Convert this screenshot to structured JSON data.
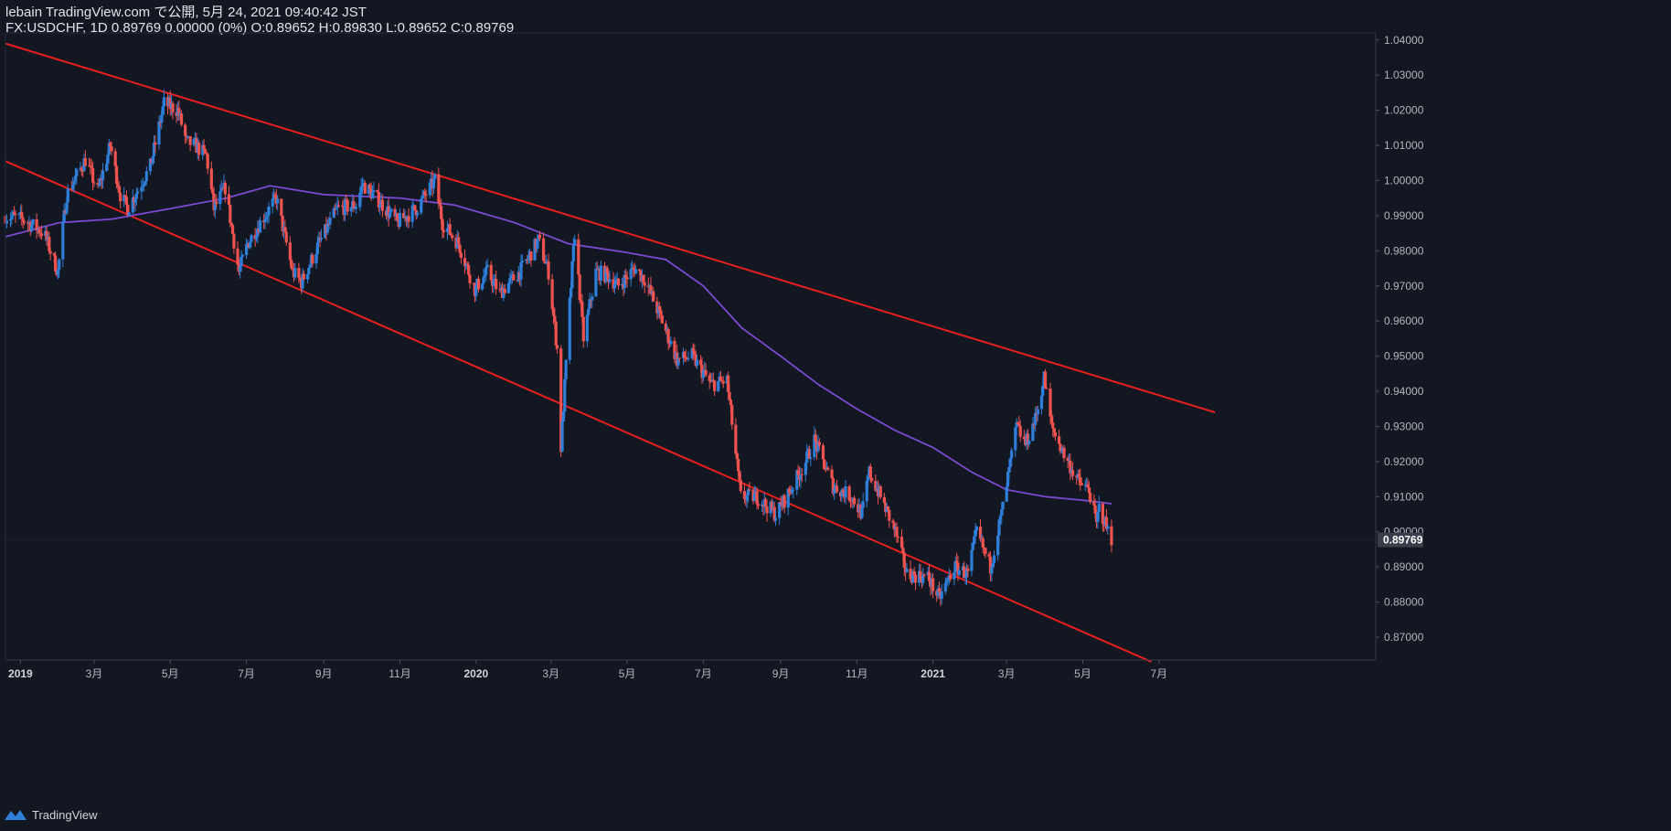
{
  "header": {
    "line1": "lebain TradingView.com で公開, 5月 24, 2021 09:40:42 JST",
    "line2": "FX:USDCHF, 1D 0.89769 0.00000 (0%) O:0.89652 H:0.89830 L:0.89652 C:0.89769"
  },
  "footer": {
    "brand": "TradingView",
    "logo_icon": "tradingview-logo-icon"
  },
  "colors": {
    "background": "#131722",
    "up": "#2e7fd9",
    "down": "#ef5350",
    "trendline": "#e81f1f",
    "ma": "#7b4ad1",
    "axis_text": "#b2b5be",
    "last_price_label_bg": "#3a3e4a"
  },
  "chart_data": {
    "type": "candlestick",
    "symbol": "FX:USDCHF",
    "interval": "1D",
    "last_price": 0.89769,
    "last_price_label": "0.89769",
    "ylim": [
      0.8635,
      1.0415
    ],
    "price_ticks": [
      "0.87000",
      "0.88000",
      "0.89000",
      "0.90000",
      "0.91000",
      "0.92000",
      "0.93000",
      "0.94000",
      "0.95000",
      "0.96000",
      "0.97000",
      "0.98000",
      "0.99000",
      "1.00000",
      "1.01000",
      "1.02000",
      "1.03000",
      "1.04000"
    ],
    "time_ticks": [
      {
        "label": "2019",
        "date": "2019-01-01",
        "major": true
      },
      {
        "label": "3月",
        "date": "2019-03-01",
        "major": false
      },
      {
        "label": "5月",
        "date": "2019-05-01",
        "major": false
      },
      {
        "label": "7月",
        "date": "2019-07-01",
        "major": false
      },
      {
        "label": "9月",
        "date": "2019-09-01",
        "major": false
      },
      {
        "label": "11月",
        "date": "2019-11-01",
        "major": false
      },
      {
        "label": "2020",
        "date": "2020-01-01",
        "major": true
      },
      {
        "label": "3月",
        "date": "2020-03-01",
        "major": false
      },
      {
        "label": "5月",
        "date": "2020-05-01",
        "major": false
      },
      {
        "label": "7月",
        "date": "2020-07-01",
        "major": false
      },
      {
        "label": "9月",
        "date": "2020-09-01",
        "major": false
      },
      {
        "label": "11月",
        "date": "2020-11-01",
        "major": false
      },
      {
        "label": "2021",
        "date": "2021-01-01",
        "major": true
      },
      {
        "label": "3月",
        "date": "2021-03-01",
        "major": false
      },
      {
        "label": "5月",
        "date": "2021-05-01",
        "major": false
      },
      {
        "label": "7月",
        "date": "2021-07-01",
        "major": false
      }
    ],
    "price_path": [
      [
        "2018-12-20",
        0.99
      ],
      [
        "2019-01-03",
        0.989
      ],
      [
        "2019-01-20",
        0.985
      ],
      [
        "2019-01-31",
        0.974
      ],
      [
        "2019-02-07",
        0.996
      ],
      [
        "2019-02-22",
        1.006
      ],
      [
        "2019-03-04",
        0.997
      ],
      [
        "2019-03-14",
        1.01
      ],
      [
        "2019-03-22",
        0.996
      ],
      [
        "2019-03-28",
        0.992
      ],
      [
        "2019-04-15",
        1.004
      ],
      [
        "2019-04-26",
        1.022
      ],
      [
        "2019-05-07",
        1.02
      ],
      [
        "2019-05-14",
        1.011
      ],
      [
        "2019-05-21",
        1.01
      ],
      [
        "2019-05-30",
        1.007
      ],
      [
        "2019-06-05",
        0.992
      ],
      [
        "2019-06-14",
        0.998
      ],
      [
        "2019-06-25",
        0.974
      ],
      [
        "2019-07-02",
        0.982
      ],
      [
        "2019-07-12",
        0.988
      ],
      [
        "2019-07-25",
        0.995
      ],
      [
        "2019-08-07",
        0.974
      ],
      [
        "2019-08-14",
        0.971
      ],
      [
        "2019-08-28",
        0.982
      ],
      [
        "2019-09-12",
        0.992
      ],
      [
        "2019-09-27",
        0.993
      ],
      [
        "2019-10-02",
        0.999
      ],
      [
        "2019-10-16",
        0.994
      ],
      [
        "2019-10-30",
        0.988
      ],
      [
        "2019-11-14",
        0.992
      ],
      [
        "2019-11-29",
        1.0
      ],
      [
        "2019-12-05",
        0.988
      ],
      [
        "2019-12-18",
        0.982
      ],
      [
        "2019-12-31",
        0.969
      ],
      [
        "2020-01-10",
        0.974
      ],
      [
        "2020-01-20",
        0.968
      ],
      [
        "2020-02-05",
        0.974
      ],
      [
        "2020-02-20",
        0.983
      ],
      [
        "2020-02-28",
        0.974
      ],
      [
        "2020-03-06",
        0.952
      ],
      [
        "2020-03-09",
        0.924
      ],
      [
        "2020-03-16",
        0.965
      ],
      [
        "2020-03-20",
        0.985
      ],
      [
        "2020-03-27",
        0.955
      ],
      [
        "2020-04-06",
        0.974
      ],
      [
        "2020-04-15",
        0.973
      ],
      [
        "2020-04-24",
        0.97
      ],
      [
        "2020-05-07",
        0.975
      ],
      [
        "2020-05-15",
        0.972
      ],
      [
        "2020-05-29",
        0.96
      ],
      [
        "2020-06-10",
        0.949
      ],
      [
        "2020-06-22",
        0.95
      ],
      [
        "2020-07-07",
        0.942
      ],
      [
        "2020-07-20",
        0.943
      ],
      [
        "2020-07-31",
        0.91
      ],
      [
        "2020-08-13",
        0.91
      ],
      [
        "2020-08-28",
        0.905
      ],
      [
        "2020-09-09",
        0.912
      ],
      [
        "2020-09-21",
        0.92
      ],
      [
        "2020-09-28",
        0.926
      ],
      [
        "2020-10-13",
        0.913
      ],
      [
        "2020-10-28",
        0.91
      ],
      [
        "2020-11-05",
        0.905
      ],
      [
        "2020-11-11",
        0.917
      ],
      [
        "2020-11-20",
        0.91
      ],
      [
        "2020-12-02",
        0.9
      ],
      [
        "2020-12-11",
        0.888
      ],
      [
        "2020-12-28",
        0.887
      ],
      [
        "2021-01-06",
        0.881
      ],
      [
        "2021-01-18",
        0.89
      ],
      [
        "2021-01-29",
        0.888
      ],
      [
        "2021-02-05",
        0.9
      ],
      [
        "2021-02-16",
        0.89
      ],
      [
        "2021-02-26",
        0.907
      ],
      [
        "2021-03-09",
        0.93
      ],
      [
        "2021-03-16",
        0.925
      ],
      [
        "2021-03-24",
        0.932
      ],
      [
        "2021-03-31",
        0.944
      ],
      [
        "2021-04-06",
        0.93
      ],
      [
        "2021-04-16",
        0.922
      ],
      [
        "2021-04-28",
        0.914
      ],
      [
        "2021-05-06",
        0.912
      ],
      [
        "2021-05-12",
        0.902
      ],
      [
        "2021-05-14",
        0.907
      ],
      [
        "2021-05-24",
        0.8977
      ]
    ],
    "moving_average": [
      [
        "2018-12-20",
        0.984
      ],
      [
        "2019-02-01",
        0.988
      ],
      [
        "2019-03-15",
        0.989
      ],
      [
        "2019-05-01",
        0.992
      ],
      [
        "2019-06-15",
        0.995
      ],
      [
        "2019-07-20",
        0.9985
      ],
      [
        "2019-09-01",
        0.996
      ],
      [
        "2019-11-01",
        0.995
      ],
      [
        "2019-12-15",
        0.993
      ],
      [
        "2020-02-01",
        0.988
      ],
      [
        "2020-03-15",
        0.982
      ],
      [
        "2020-05-01",
        0.9795
      ],
      [
        "2020-06-01",
        0.9775
      ],
      [
        "2020-07-01",
        0.97
      ],
      [
        "2020-08-01",
        0.958
      ],
      [
        "2020-09-01",
        0.95
      ],
      [
        "2020-10-01",
        0.942
      ],
      [
        "2020-11-01",
        0.935
      ],
      [
        "2020-12-01",
        0.929
      ],
      [
        "2021-01-01",
        0.924
      ],
      [
        "2021-02-01",
        0.917
      ],
      [
        "2021-03-01",
        0.912
      ],
      [
        "2021-04-01",
        0.91
      ],
      [
        "2021-05-01",
        0.909
      ],
      [
        "2021-05-24",
        0.908
      ]
    ],
    "trendlines": [
      {
        "name": "upper",
        "points": [
          [
            "2018-12-20",
            1.039
          ],
          [
            "2021-08-15",
            0.934
          ]
        ]
      },
      {
        "name": "lower",
        "points": [
          [
            "2018-12-20",
            1.0055
          ],
          [
            "2021-06-25",
            0.863
          ]
        ]
      }
    ]
  }
}
